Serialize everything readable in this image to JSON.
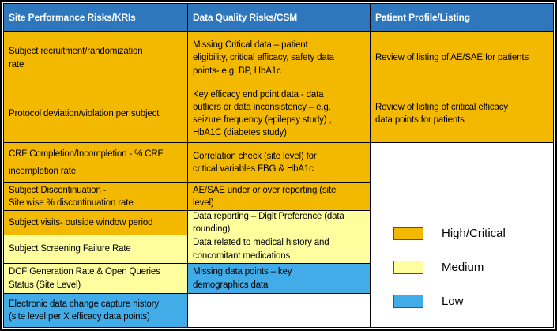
{
  "colors": {
    "header_bg": "#2E77BC",
    "header_text": "#FFFFFF",
    "high": "#F3B800",
    "medium": "#FEFE9E",
    "low": "#41ACE8",
    "cell_text": "#000000",
    "swatch_border": "#44546A",
    "grid_border": "#000000"
  },
  "chart_data": {
    "type": "table",
    "columns": [
      "Site Performance Risks/KRIs",
      "Data Quality Risks/CSM",
      "Patient Profile/Listing"
    ],
    "col1_rows": [
      {
        "text": "Subject recruitment/randomization\nrate",
        "risk": "high"
      },
      {
        "text": "Protocol deviation/violation per subject",
        "risk": "high"
      },
      {
        "text": "CRF Completion/Incompletion  - % CRF\nincompletion rate",
        "risk": "high"
      },
      {
        "text": "Subject Discontinuation -\nSite wise % discontinuation rate",
        "risk": "high"
      },
      {
        "text": "Subject visits- outside window period",
        "risk": "high"
      },
      {
        "text": "Subject Screening Failure Rate",
        "risk": "medium"
      },
      {
        "text": "DCF Generation Rate  & Open Queries\nStatus  (Site Level)",
        "risk": "medium"
      },
      {
        "text": "Electronic data change capture history\n(site level per X efficacy data points)",
        "risk": "low"
      }
    ],
    "col2_rows": [
      {
        "text": "Missing Critical data – patient\neligibility,  critical efficacy, safety  data\npoints- e.g. BP, HbA1c",
        "risk": "high"
      },
      {
        "text": "Key efficacy end point  data - data\noutliers  or data  inconsistency – e.g.\nseizure frequency (epilepsy study) ,\nHbA1C (diabetes study)",
        "risk": "high"
      },
      {
        "text": "Correlation check  (site level) for\ncritical variables FBG &  HbA1c",
        "risk": "high"
      },
      {
        "text": "AE/SAE under or over reporting (site\nlevel)",
        "risk": "high"
      },
      {
        "text": "Data reporting – Digit Preference (data\nrounding)",
        "risk": "medium"
      },
      {
        "text": "Data related to medical history and\nconcomitant medications",
        "risk": "medium"
      },
      {
        "text": "Missing  data  points – key\ndemographics data",
        "risk": "low"
      },
      {
        "text": "",
        "risk": "none"
      }
    ],
    "col3_rows": [
      {
        "text": "Review of listing of AE/SAE for patients",
        "risk": "high"
      },
      {
        "text": "Review  of  listing  of critical efficacy\ndata points for patients",
        "risk": "high"
      }
    ],
    "legend": [
      {
        "label": "High/Critical",
        "risk": "high"
      },
      {
        "label": "Medium",
        "risk": "medium"
      },
      {
        "label": "Low",
        "risk": "low"
      }
    ]
  }
}
